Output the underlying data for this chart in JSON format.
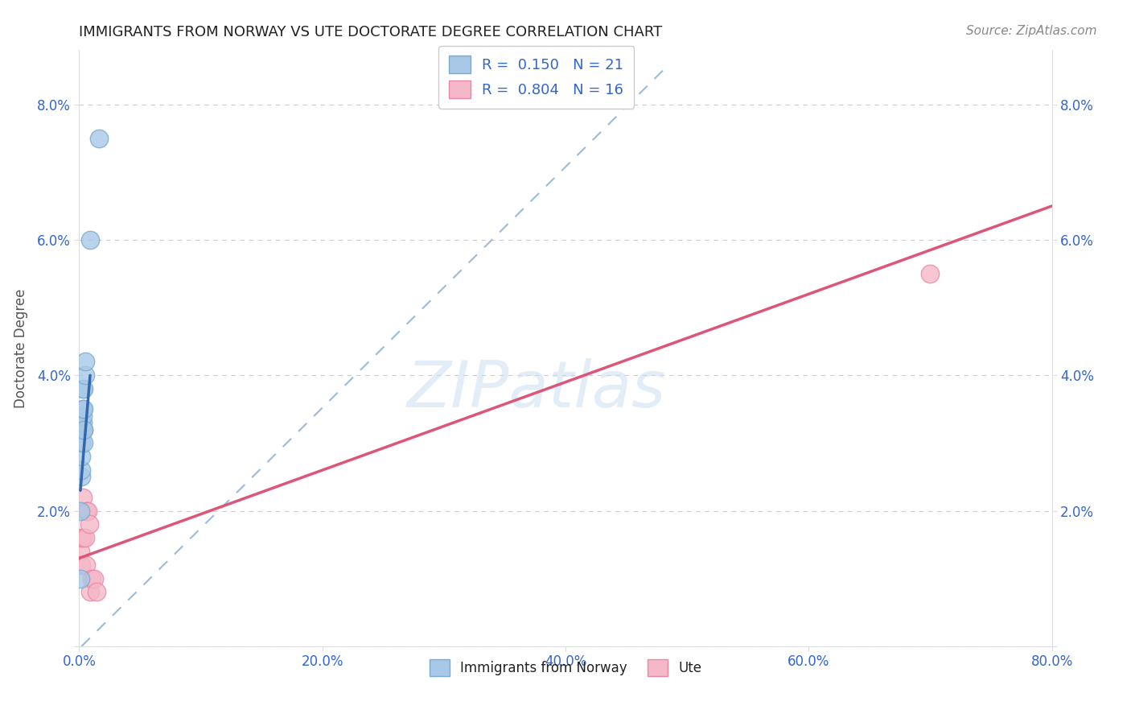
{
  "title": "IMMIGRANTS FROM NORWAY VS UTE DOCTORATE DEGREE CORRELATION CHART",
  "source": "Source: ZipAtlas.com",
  "ylabel": "Doctorate Degree",
  "xlim": [
    0,
    0.8
  ],
  "ylim": [
    0,
    0.088
  ],
  "legend1_r": "0.150",
  "legend1_n": "21",
  "legend2_r": "0.804",
  "legend2_n": "16",
  "blue_scatter_color": "#a8c8e8",
  "blue_scatter_edge": "#7aaacc",
  "pink_scatter_color": "#f5b8c8",
  "pink_scatter_edge": "#e888a8",
  "blue_line_color": "#3366aa",
  "pink_line_color": "#dd5577",
  "dashed_color": "#99bbdd",
  "norway_x": [
    0.001,
    0.001,
    0.002,
    0.002,
    0.002,
    0.002,
    0.002,
    0.002,
    0.003,
    0.003,
    0.003,
    0.003,
    0.003,
    0.004,
    0.004,
    0.004,
    0.004,
    0.005,
    0.005,
    0.009,
    0.016
  ],
  "norway_y": [
    0.02,
    0.01,
    0.025,
    0.026,
    0.028,
    0.03,
    0.032,
    0.033,
    0.032,
    0.033,
    0.034,
    0.035,
    0.038,
    0.03,
    0.032,
    0.035,
    0.038,
    0.04,
    0.042,
    0.06,
    0.075
  ],
  "ute_x": [
    0.001,
    0.002,
    0.002,
    0.003,
    0.003,
    0.004,
    0.005,
    0.006,
    0.006,
    0.007,
    0.008,
    0.009,
    0.01,
    0.012,
    0.014,
    0.7
  ],
  "ute_y": [
    0.014,
    0.012,
    0.016,
    0.016,
    0.022,
    0.032,
    0.016,
    0.012,
    0.02,
    0.02,
    0.018,
    0.008,
    0.01,
    0.01,
    0.008,
    0.055
  ],
  "norway_trendline_x": [
    0.001,
    0.009
  ],
  "norway_trendline_y": [
    0.023,
    0.04
  ],
  "ute_trendline_x": [
    0.0,
    0.8
  ],
  "ute_trendline_y": [
    0.013,
    0.065
  ],
  "dashed_line_x": [
    0.002,
    0.48
  ],
  "dashed_line_y": [
    0.0,
    0.085
  ],
  "watermark": "ZIPatlas",
  "xtick_positions": [
    0.0,
    0.2,
    0.4,
    0.6,
    0.8
  ],
  "ytick_positions": [
    0.0,
    0.02,
    0.04,
    0.06,
    0.08
  ],
  "xtick_labels": [
    "0.0%",
    "20.0%",
    "40.0%",
    "60.0%",
    "80.0%"
  ],
  "ytick_labels_left": [
    "",
    "2.0%",
    "4.0%",
    "6.0%",
    "8.0%"
  ],
  "ytick_labels_right": [
    "",
    "2.0%",
    "4.0%",
    "6.0%",
    "8.0%"
  ]
}
